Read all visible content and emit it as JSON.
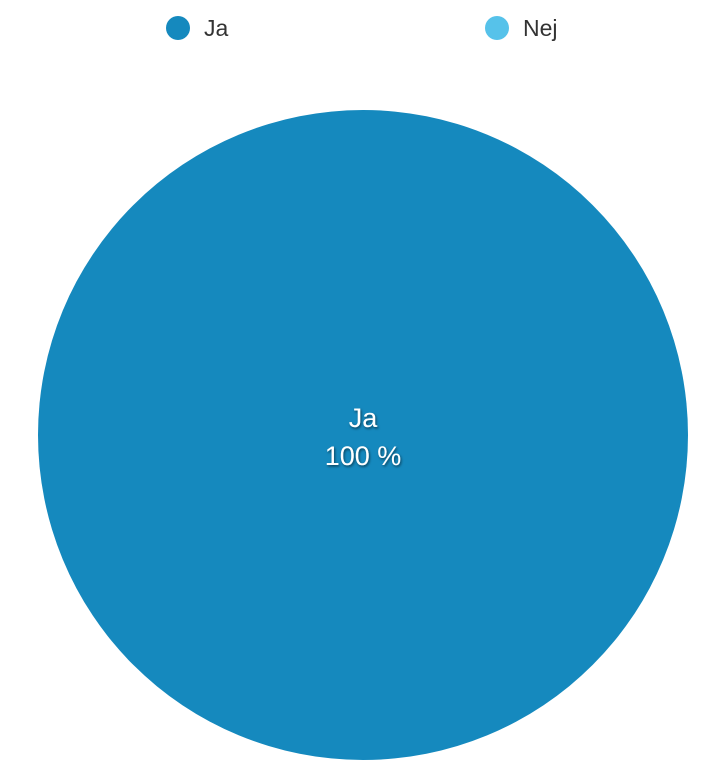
{
  "chart_data": {
    "type": "pie",
    "categories": [
      "Ja",
      "Nej"
    ],
    "values": [
      100,
      0
    ],
    "colors": [
      "#1589be",
      "#56c2ea"
    ],
    "value_suffix": " %",
    "legend_placement": "top"
  }
}
